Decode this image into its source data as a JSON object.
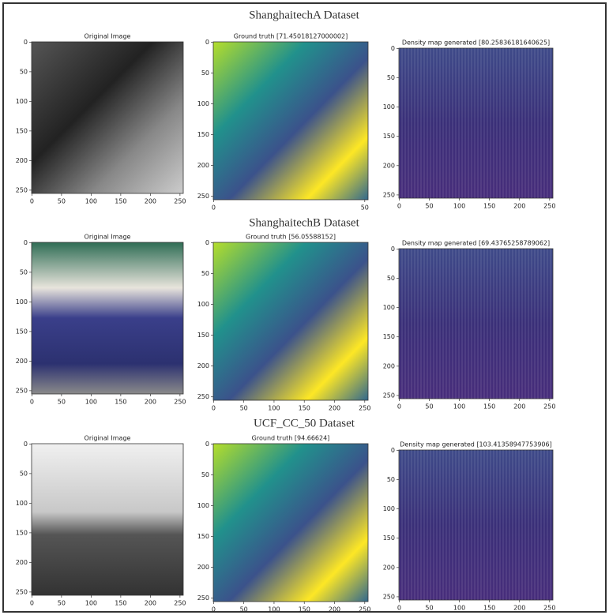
{
  "sections": [
    {
      "title": "ShanghaitechA Dataset",
      "panels": [
        {
          "title": "Original Image",
          "xticks": [
            "0",
            "50",
            "100",
            "150",
            "200",
            "250"
          ],
          "yticks": [
            "0",
            "50",
            "100",
            "150",
            "200",
            "250"
          ]
        },
        {
          "title": "Ground truth [71.45018127000002]",
          "xticks": [
            "0",
            "50"
          ],
          "yticks": [
            "0",
            "50",
            "100",
            "150",
            "200",
            "250"
          ]
        },
        {
          "title": "Density map generated [80.25836181640625]",
          "xticks": [
            "0",
            "50",
            "100",
            "150",
            "200",
            "250"
          ],
          "yticks": [
            "0",
            "50",
            "100",
            "150",
            "200",
            "250"
          ]
        }
      ]
    },
    {
      "title": "ShanghaitechB Dataset",
      "panels": [
        {
          "title": "Original Image",
          "xticks": [
            "0",
            "50",
            "100",
            "150",
            "200",
            "250"
          ],
          "yticks": [
            "0",
            "50",
            "100",
            "150",
            "200",
            "250"
          ]
        },
        {
          "title": "Ground truth [56.05588152]",
          "xticks": [
            "0",
            "50",
            "100",
            "150",
            "200",
            "250"
          ],
          "yticks": [
            "0",
            "50",
            "100",
            "150",
            "200",
            "250"
          ]
        },
        {
          "title": "Density map generated [69.43765258789062]",
          "xticks": [
            "0",
            "50",
            "100",
            "150",
            "200",
            "250"
          ],
          "yticks": [
            "0",
            "50",
            "100",
            "150",
            "200",
            "250"
          ]
        }
      ]
    },
    {
      "title": "UCF_CC_50 Dataset",
      "panels": [
        {
          "title": "Original Image",
          "xticks": [
            "0",
            "50",
            "100",
            "150",
            "200",
            "250"
          ],
          "yticks": [
            "0",
            "50",
            "100",
            "150",
            "200",
            "250"
          ]
        },
        {
          "title": "Ground truth [94.66624]",
          "xticks": [
            "0",
            "50",
            "100",
            "150",
            "200",
            "250"
          ],
          "yticks": [
            "0",
            "50",
            "100",
            "150",
            "200",
            "250"
          ]
        },
        {
          "title": "Density map generated [103.41358947753906]",
          "xticks": [
            "0",
            "50",
            "100",
            "150",
            "200",
            "250"
          ],
          "yticks": [
            "0",
            "50",
            "100",
            "150",
            "200",
            "250"
          ]
        }
      ]
    }
  ]
}
